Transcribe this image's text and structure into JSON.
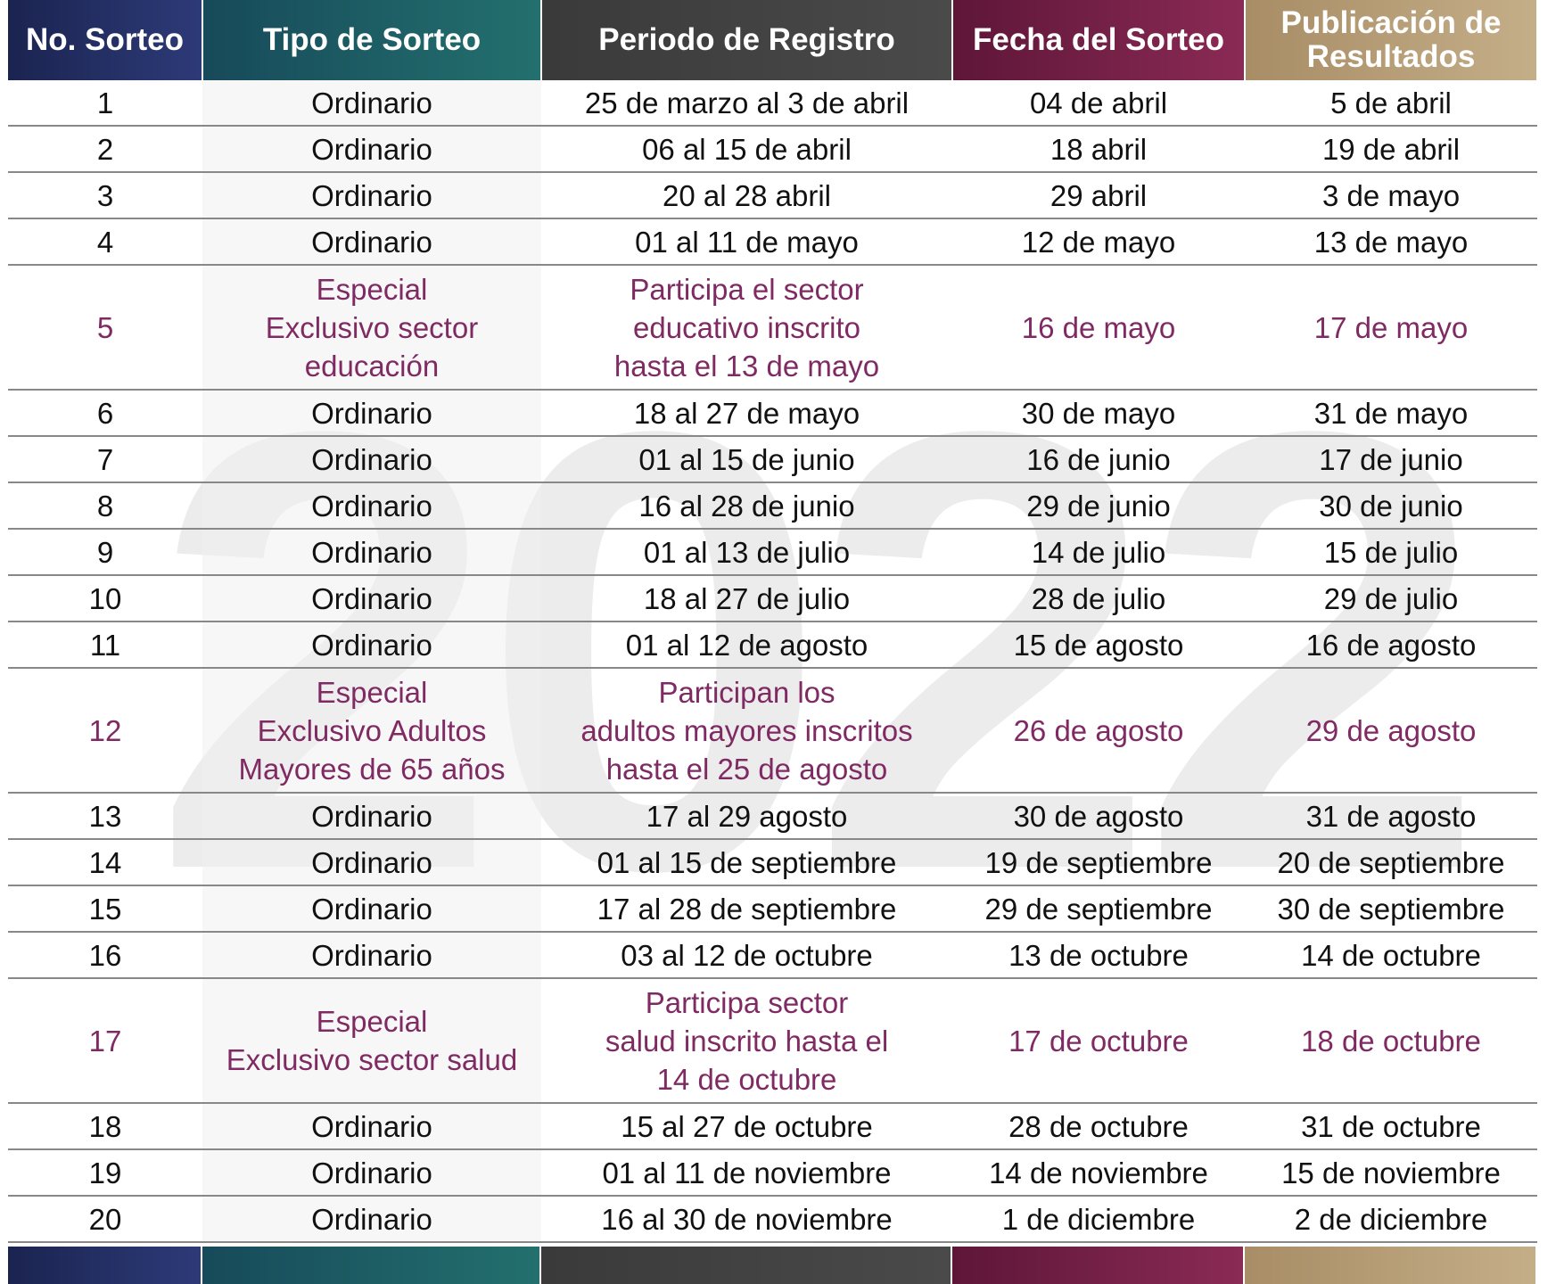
{
  "watermark": "2022",
  "table": {
    "headers": [
      "No. Sorteo",
      "Tipo de Sorteo",
      "Periodo de Registro",
      "Fecha del Sorteo",
      "Publicación de Resultados"
    ],
    "rows": [
      {
        "cells": [
          "1",
          "Ordinario",
          "25 de marzo al 3 de abril",
          "04 de abril",
          "5 de abril"
        ]
      },
      {
        "cells": [
          "2",
          "Ordinario",
          "06 al 15 de abril",
          "18 abril",
          "19 de abril"
        ]
      },
      {
        "cells": [
          "3",
          "Ordinario",
          "20 al 28 abril",
          "29 abril",
          "3 de mayo"
        ]
      },
      {
        "cells": [
          "4",
          "Ordinario",
          "01 al 11 de mayo",
          "12 de mayo",
          "13 de mayo"
        ]
      },
      {
        "cells": [
          "5",
          "Especial\nExclusivo sector\neducación",
          "Participa el sector\neducativo inscrito\nhasta el 13 de mayo",
          "16 de mayo",
          "17 de mayo"
        ],
        "color": "#7f2a62"
      },
      {
        "cells": [
          "6",
          "Ordinario",
          "18 al 27 de mayo",
          "30 de mayo",
          "31 de mayo"
        ]
      },
      {
        "cells": [
          "7",
          "Ordinario",
          "01 al 15 de junio",
          "16 de junio",
          "17 de junio"
        ]
      },
      {
        "cells": [
          "8",
          "Ordinario",
          "16 al 28 de junio",
          "29 de junio",
          "30 de junio"
        ]
      },
      {
        "cells": [
          "9",
          "Ordinario",
          "01 al 13 de julio",
          "14 de julio",
          "15 de julio"
        ]
      },
      {
        "cells": [
          "10",
          "Ordinario",
          "18 al 27 de julio",
          "28 de julio",
          "29 de julio"
        ]
      },
      {
        "cells": [
          "11",
          "Ordinario",
          "01 al 12 de agosto",
          "15 de agosto",
          "16 de agosto"
        ]
      },
      {
        "cells": [
          "12",
          "Especial\nExclusivo Adultos\nMayores de 65 años",
          "Participan los\nadultos mayores inscritos\nhasta el 25 de agosto",
          "26 de agosto",
          "29 de agosto"
        ],
        "color": "#7f2a62"
      },
      {
        "cells": [
          "13",
          "Ordinario",
          "17 al 29 agosto",
          "30 de agosto",
          "31 de agosto"
        ]
      },
      {
        "cells": [
          "14",
          "Ordinario",
          "01 al 15 de septiembre",
          "19 de septiembre",
          "20 de septiembre"
        ]
      },
      {
        "cells": [
          "15",
          "Ordinario",
          "17 al 28 de septiembre",
          "29 de septiembre",
          "30 de septiembre"
        ]
      },
      {
        "cells": [
          "16",
          "Ordinario",
          "03 al 12 de octubre",
          "13 de octubre",
          "14 de octubre"
        ]
      },
      {
        "cells": [
          "17",
          "Especial\nExclusivo sector salud",
          "Participa sector\nsalud inscrito hasta el\n14 de octubre",
          "17 de octubre",
          "18 de octubre"
        ],
        "color": "#7f2a62"
      },
      {
        "cells": [
          "18",
          "Ordinario",
          "15 al 27 de octubre",
          "28 de octubre",
          "31 de octubre"
        ]
      },
      {
        "cells": [
          "19",
          "Ordinario",
          "01 al 11 de noviembre",
          "14 de noviembre",
          "15 de noviembre"
        ]
      },
      {
        "cells": [
          "20",
          "Ordinario",
          "16 al 30 de noviembre",
          "1 de diciembre",
          "2 de diciembre"
        ]
      }
    ]
  }
}
